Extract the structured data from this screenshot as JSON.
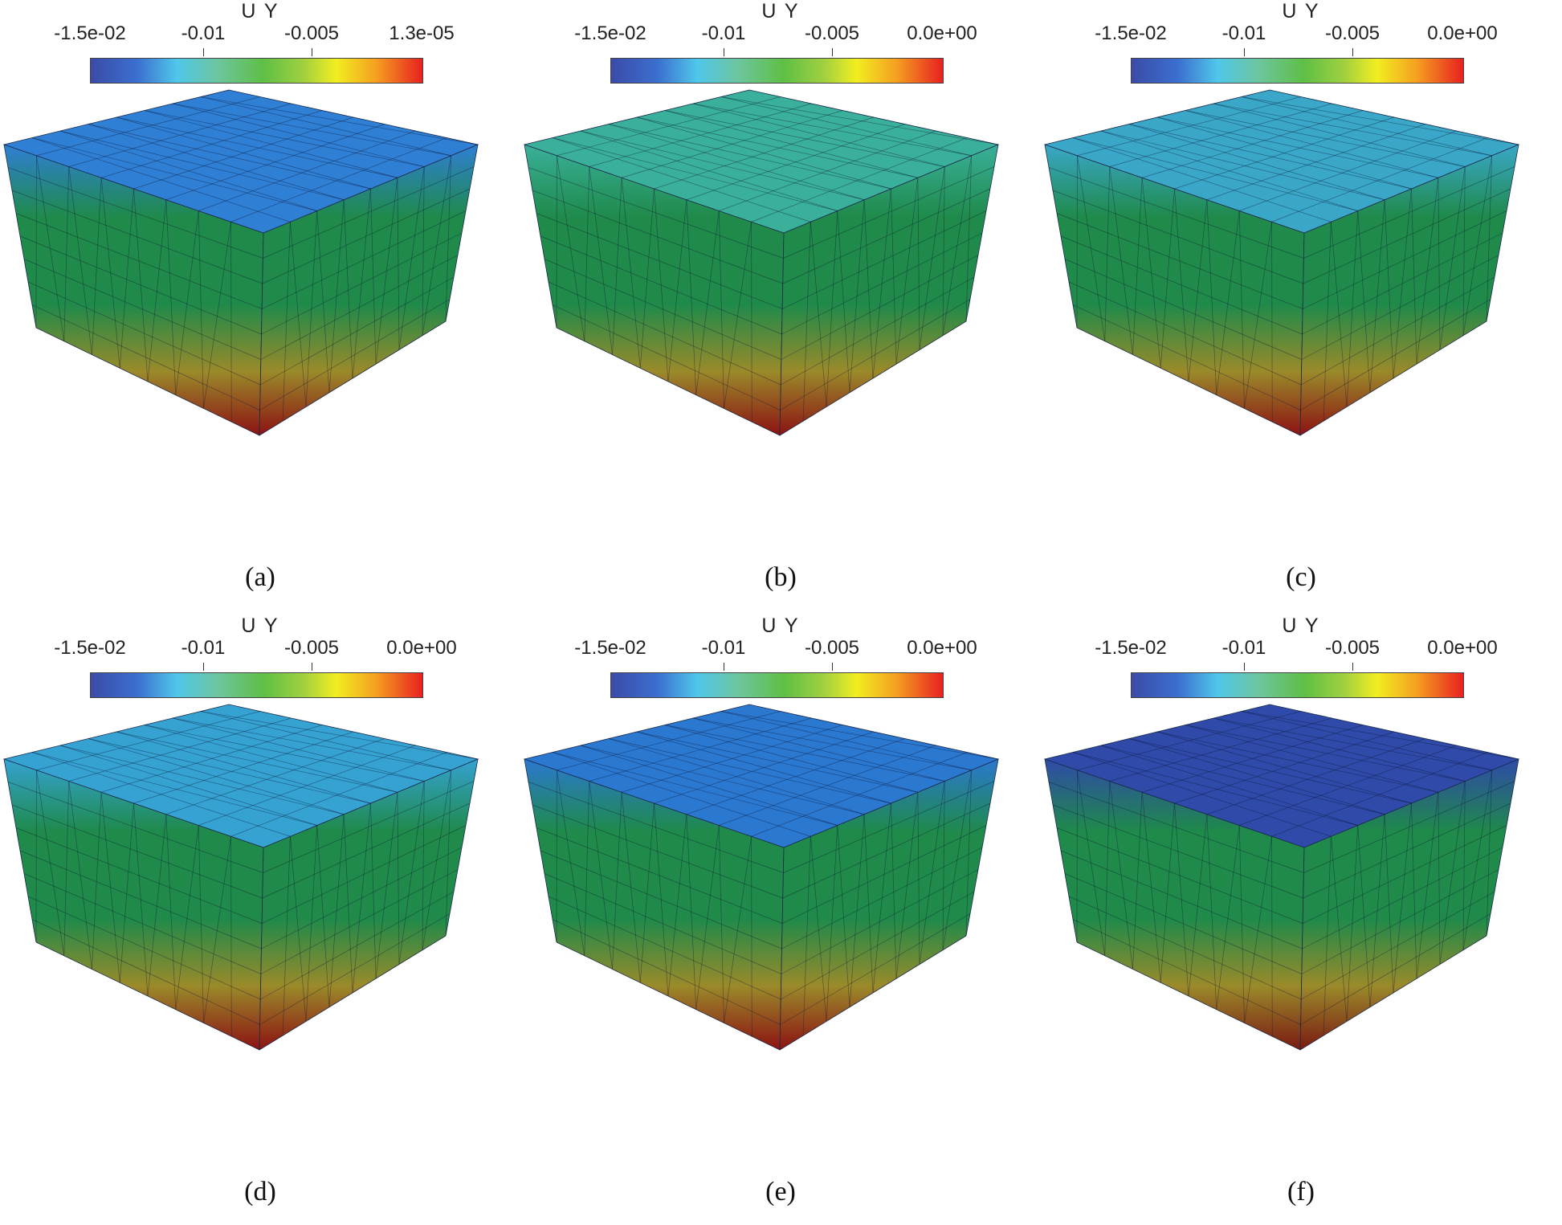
{
  "panels": [
    {
      "id": "a",
      "caption": "(a)",
      "legend_title": "U Y",
      "ticks": [
        "-1.5e-02",
        "-0.01",
        "-0.005",
        "1.3e-05"
      ],
      "top_color": "#2f7fd4",
      "mid_color": "#1f8a4a",
      "bot_color": "#8c1212"
    },
    {
      "id": "b",
      "caption": "(b)",
      "legend_title": "U Y",
      "ticks": [
        "-1.5e-02",
        "-0.01",
        "-0.005",
        "0.0e+00"
      ],
      "top_color": "#3ab09a",
      "mid_color": "#1f8a4a",
      "bot_color": "#8c1212"
    },
    {
      "id": "c",
      "caption": "(c)",
      "legend_title": "U Y",
      "ticks": [
        "-1.5e-02",
        "-0.01",
        "-0.005",
        "0.0e+00"
      ],
      "top_color": "#3aa7c8",
      "mid_color": "#1f8a4a",
      "bot_color": "#8c1212"
    },
    {
      "id": "d",
      "caption": "(d)",
      "legend_title": "U Y",
      "ticks": [
        "-1.5e-02",
        "-0.01",
        "-0.005",
        "0.0e+00"
      ],
      "top_color": "#35a2d2",
      "mid_color": "#1f8a4a",
      "bot_color": "#8c1212"
    },
    {
      "id": "e",
      "caption": "(e)",
      "legend_title": "U Y",
      "ticks": [
        "-1.5e-02",
        "-0.01",
        "-0.005",
        "0.0e+00"
      ],
      "top_color": "#2b78d0",
      "mid_color": "#1f8a4a",
      "bot_color": "#8c1212"
    },
    {
      "id": "f",
      "caption": "(f)",
      "legend_title": "U Y",
      "ticks": [
        "-1.5e-02",
        "-0.01",
        "-0.005",
        "0.0e+00"
      ],
      "top_color": "#2f4aa8",
      "mid_color": "#1f8a4a",
      "bot_color": "#7a1a12"
    }
  ]
}
